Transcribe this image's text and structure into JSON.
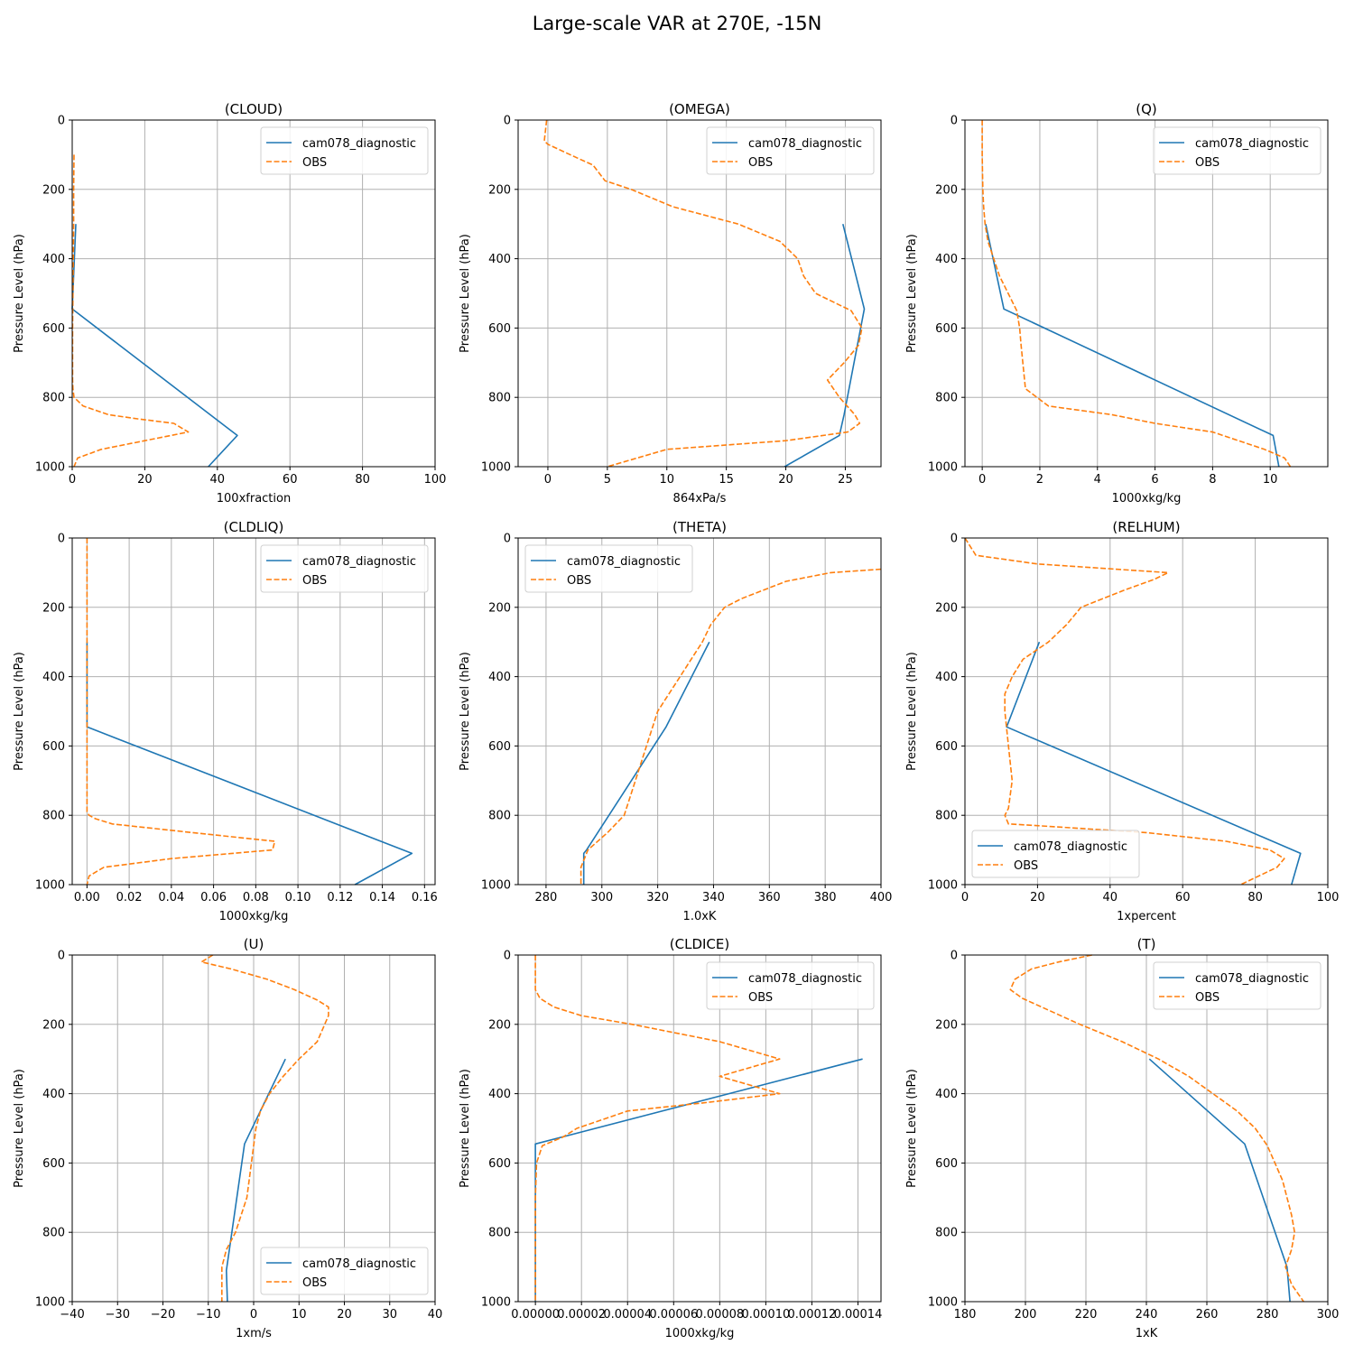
{
  "figure": {
    "title": "Large-scale VAR at 270E, -15N",
    "colors": {
      "model": "#1f77b4",
      "obs": "#ff7f0e",
      "grid": "#b0b0b0"
    }
  },
  "chart_data": [
    {
      "type": "line",
      "title": "(CLOUD)",
      "xlabel": "100xfraction",
      "ylabel": "Pressure Level (hPa)",
      "xlim": [
        0,
        100
      ],
      "ylim": [
        1000,
        0
      ],
      "grid": true,
      "legend": "upper right",
      "xticks": [
        0,
        20,
        40,
        60,
        80,
        100
      ],
      "xtick_labels": [
        "0",
        "20",
        "40",
        "60",
        "80",
        "100"
      ],
      "yticks": [
        0,
        200,
        400,
        600,
        800,
        1000
      ],
      "series": [
        {
          "name": "cam078_diagnostic",
          "style": "solid",
          "x": [
            1.0,
            0.0,
            45.5,
            37.5
          ],
          "y": [
            300,
            545,
            910,
            1000
          ]
        },
        {
          "name": "OBS",
          "style": "dashed",
          "x": [
            0.5,
            0.4,
            0.4,
            0.3,
            0.2,
            0.1,
            0.1,
            0.1,
            0.2,
            0.5,
            3,
            10,
            18,
            28,
            32,
            20,
            8,
            1.5,
            0.5
          ],
          "y": [
            100,
            200,
            300,
            400,
            500,
            600,
            700,
            750,
            775,
            800,
            825,
            850,
            862,
            875,
            900,
            925,
            950,
            975,
            1000
          ]
        }
      ]
    },
    {
      "type": "line",
      "title": "(OMEGA)",
      "xlabel": "864xPa/s",
      "ylabel": "Pressure Level (hPa)",
      "xlim": [
        -2.5,
        28
      ],
      "ylim": [
        1000,
        0
      ],
      "grid": true,
      "legend": "upper right",
      "xticks": [
        0,
        5,
        10,
        15,
        20,
        25
      ],
      "xtick_labels": [
        "0",
        "5",
        "10",
        "15",
        "20",
        "25"
      ],
      "yticks": [
        0,
        200,
        400,
        600,
        800,
        1000
      ],
      "series": [
        {
          "name": "cam078_diagnostic",
          "style": "solid",
          "x": [
            24.8,
            26.6,
            24.9,
            24.5,
            19.9
          ],
          "y": [
            300,
            545,
            850,
            910,
            1000
          ]
        },
        {
          "name": "OBS",
          "style": "dashed",
          "x": [
            -0.1,
            -0.2,
            -0.3,
            0.0,
            2.5,
            3.8,
            4.8,
            7.0,
            10.5,
            16.0,
            19.5,
            21.0,
            21.5,
            22.5,
            25.5,
            26.4,
            26.1,
            24.9,
            23.5,
            24.5,
            25.8,
            26.2,
            25.2,
            20.0,
            10.0,
            5.0
          ],
          "y": [
            0,
            30,
            60,
            70,
            110,
            130,
            175,
            200,
            250,
            300,
            350,
            400,
            450,
            500,
            550,
            600,
            650,
            700,
            750,
            800,
            850,
            875,
            900,
            925,
            950,
            1000
          ]
        }
      ]
    },
    {
      "type": "line",
      "title": "(Q)",
      "xlabel": "1000xkg/kg",
      "ylabel": "Pressure Level (hPa)",
      "xlim": [
        -0.6,
        12
      ],
      "ylim": [
        1000,
        0
      ],
      "grid": true,
      "legend": "upper right",
      "xticks": [
        0,
        2,
        4,
        6,
        8,
        10
      ],
      "xtick_labels": [
        "0",
        "2",
        "4",
        "6",
        "8",
        "10"
      ],
      "yticks": [
        0,
        200,
        400,
        600,
        800,
        1000
      ],
      "series": [
        {
          "name": "cam078_diagnostic",
          "style": "solid",
          "x": [
            0.12,
            0.75,
            10.1,
            10.3
          ],
          "y": [
            300,
            545,
            910,
            1000
          ]
        },
        {
          "name": "OBS",
          "style": "dashed",
          "x": [
            0.0,
            0.0,
            0.02,
            0.05,
            0.1,
            0.2,
            0.4,
            0.6,
            0.9,
            1.2,
            1.3,
            1.35,
            1.5,
            2.3,
            4.5,
            6.0,
            8.0,
            9.8,
            10.5,
            10.7
          ],
          "y": [
            0,
            100,
            200,
            250,
            300,
            350,
            400,
            450,
            500,
            550,
            600,
            650,
            775,
            825,
            850,
            875,
            900,
            950,
            975,
            1000
          ]
        }
      ]
    },
    {
      "type": "line",
      "title": "(CLDLIQ)",
      "xlabel": "1000xkg/kg",
      "ylabel": "Pressure Level (hPa)",
      "xlim": [
        -0.007,
        0.165
      ],
      "ylim": [
        1000,
        0
      ],
      "grid": true,
      "legend": "upper right",
      "xticks": [
        0.0,
        0.02,
        0.04,
        0.06,
        0.08,
        0.1,
        0.12,
        0.14,
        0.16
      ],
      "xtick_labels": [
        "0.00",
        "0.02",
        "0.04",
        "0.06",
        "0.08",
        "0.10",
        "0.12",
        "0.14",
        "0.16"
      ],
      "yticks": [
        0,
        200,
        400,
        600,
        800,
        1000
      ],
      "series": [
        {
          "name": "cam078_diagnostic",
          "style": "solid",
          "x": [
            0.0,
            0.0,
            0.154,
            0.127
          ],
          "y": [
            300,
            545,
            910,
            1000
          ]
        },
        {
          "name": "OBS",
          "style": "dashed",
          "x": [
            0.0,
            0.0,
            0.0,
            0.0,
            0.0,
            0.0,
            0.0,
            0.0,
            0.0,
            0.001,
            0.004,
            0.012,
            0.05,
            0.089,
            0.088,
            0.04,
            0.008,
            0.001,
            0.0
          ],
          "y": [
            0,
            200,
            400,
            500,
            600,
            700,
            750,
            775,
            790,
            800,
            810,
            825,
            850,
            875,
            900,
            925,
            950,
            975,
            1000
          ]
        }
      ]
    },
    {
      "type": "line",
      "title": "(THETA)",
      "xlabel": "1.0xK",
      "ylabel": "Pressure Level (hPa)",
      "xlim": [
        270,
        400
      ],
      "ylim": [
        1000,
        0
      ],
      "grid": true,
      "legend": "upper left",
      "xticks": [
        280,
        300,
        320,
        340,
        360,
        380,
        400
      ],
      "xtick_labels": [
        "280",
        "300",
        "320",
        "340",
        "360",
        "380",
        "400"
      ],
      "yticks": [
        0,
        200,
        400,
        600,
        800,
        1000
      ],
      "series": [
        {
          "name": "cam078_diagnostic",
          "style": "solid",
          "x": [
            338.5,
            323.0,
            294.5,
            293.5,
            293.5
          ],
          "y": [
            300,
            545,
            900,
            910,
            1000
          ]
        },
        {
          "name": "OBS",
          "style": "dashed",
          "x": [
            400,
            382,
            366,
            358,
            350,
            344,
            339,
            336,
            332,
            328,
            324,
            320,
            316,
            312,
            308,
            302,
            295,
            292.5,
            292.5
          ],
          "y": [
            90,
            100,
            125,
            150,
            175,
            200,
            250,
            300,
            350,
            400,
            450,
            500,
            600,
            700,
            800,
            850,
            900,
            950,
            1000
          ]
        }
      ]
    },
    {
      "type": "line",
      "title": "(RELHUM)",
      "xlabel": "1xpercent",
      "ylabel": "Pressure Level (hPa)",
      "xlim": [
        0,
        100
      ],
      "ylim": [
        1000,
        0
      ],
      "grid": true,
      "legend": "lower left",
      "xticks": [
        0,
        20,
        40,
        60,
        80,
        100
      ],
      "xtick_labels": [
        "0",
        "20",
        "40",
        "60",
        "80",
        "100"
      ],
      "yticks": [
        0,
        200,
        400,
        600,
        800,
        1000
      ],
      "series": [
        {
          "name": "cam078_diagnostic",
          "style": "solid",
          "x": [
            20.5,
            11.5,
            92.5,
            90.0
          ],
          "y": [
            300,
            545,
            910,
            1000
          ]
        },
        {
          "name": "OBS",
          "style": "dashed",
          "x": [
            0,
            3,
            20,
            56,
            52,
            44,
            32,
            28,
            23,
            16,
            13,
            11,
            11,
            12,
            13,
            12,
            11,
            12,
            20,
            50,
            72,
            84,
            88,
            86,
            76
          ],
          "y": [
            0,
            50,
            75,
            100,
            120,
            150,
            200,
            250,
            300,
            350,
            400,
            450,
            500,
            600,
            700,
            780,
            800,
            825,
            830,
            850,
            875,
            900,
            925,
            950,
            1000
          ]
        }
      ]
    },
    {
      "type": "line",
      "title": "(U)",
      "xlabel": "1xm/s",
      "ylabel": "Pressure Level (hPa)",
      "xlim": [
        -40,
        40
      ],
      "ylim": [
        1000,
        0
      ],
      "grid": true,
      "legend": "lower right",
      "xticks": [
        -40,
        -30,
        -20,
        -10,
        0,
        10,
        20,
        30,
        40
      ],
      "xtick_labels": [
        "−40",
        "−30",
        "−20",
        "−10",
        "0",
        "10",
        "20",
        "30",
        "40"
      ],
      "yticks": [
        0,
        200,
        400,
        600,
        800,
        1000
      ],
      "series": [
        {
          "name": "cam078_diagnostic",
          "style": "solid",
          "x": [
            7.0,
            -2.0,
            -6.0,
            -5.8
          ],
          "y": [
            300,
            545,
            910,
            1000
          ]
        },
        {
          "name": "OBS",
          "style": "dashed",
          "x": [
            -9.0,
            -11.5,
            -5.0,
            3.0,
            9.0,
            14.0,
            16.5,
            16.5,
            14.0,
            10.0,
            6.5,
            3.5,
            1.5,
            0.5,
            -0.5,
            -1.5,
            -4.0,
            -6.0,
            -7.0,
            -7.0
          ],
          "y": [
            0,
            20,
            40,
            70,
            100,
            130,
            150,
            175,
            250,
            300,
            350,
            400,
            450,
            500,
            600,
            700,
            800,
            850,
            900,
            1000
          ]
        }
      ]
    },
    {
      "type": "line",
      "title": "(CLDICE)",
      "xlabel": "1000xkg/kg",
      "ylabel": "Pressure Level (hPa)",
      "xlim": [
        -7.5e-06,
        0.00015
      ],
      "ylim": [
        1000,
        0
      ],
      "grid": true,
      "legend": "upper right",
      "xticks": [
        0.0,
        2e-05,
        4e-05,
        6e-05,
        8e-05,
        0.0001,
        0.00012,
        0.00014
      ],
      "xtick_labels": [
        "0.00000",
        "0.00002",
        "0.00004",
        "0.00006",
        "0.00008",
        "0.00010",
        "0.00012",
        "0.00014"
      ],
      "yticks": [
        0,
        200,
        400,
        600,
        800,
        1000
      ],
      "series": [
        {
          "name": "cam078_diagnostic",
          "style": "solid",
          "x": [
            0.000142,
            0.0,
            0.0,
            0.0
          ],
          "y": [
            300,
            545,
            910,
            1000
          ]
        },
        {
          "name": "OBS",
          "style": "dashed",
          "x": [
            0.0,
            0.0,
            2e-06,
            8e-06,
            2e-05,
            4.2e-05,
            8e-05,
            0.000106,
            8e-05,
            0.000106,
            7.5e-05,
            4e-05,
            1.8e-05,
            1.2e-05,
            3e-06,
            5e-07,
            0.0,
            0.0,
            0.0
          ],
          "y": [
            0,
            100,
            125,
            150,
            175,
            200,
            250,
            300,
            350,
            400,
            425,
            450,
            500,
            525,
            550,
            600,
            700,
            800,
            1000
          ]
        }
      ]
    },
    {
      "type": "line",
      "title": "(T)",
      "xlabel": "1xK",
      "ylabel": "Pressure Level (hPa)",
      "xlim": [
        180,
        300
      ],
      "ylim": [
        1000,
        0
      ],
      "grid": true,
      "legend": "upper right",
      "xticks": [
        180,
        200,
        220,
        240,
        260,
        280,
        300
      ],
      "xtick_labels": [
        "180",
        "200",
        "220",
        "240",
        "260",
        "280",
        "300"
      ],
      "yticks": [
        0,
        200,
        400,
        600,
        800,
        1000
      ],
      "series": [
        {
          "name": "cam078_diagnostic",
          "style": "solid",
          "x": [
            241.0,
            272.5,
            286.5,
            287.5
          ],
          "y": [
            300,
            545,
            900,
            1000
          ]
        },
        {
          "name": "OBS",
          "style": "dashed",
          "x": [
            222,
            211,
            202,
            196.5,
            195,
            199,
            218,
            232,
            244,
            254,
            262,
            270,
            276,
            280,
            285,
            288,
            289,
            288,
            286,
            288,
            292
          ],
          "y": [
            0,
            20,
            40,
            70,
            100,
            125,
            200,
            250,
            300,
            350,
            400,
            450,
            500,
            550,
            650,
            750,
            800,
            850,
            900,
            950,
            1000
          ]
        }
      ]
    }
  ]
}
